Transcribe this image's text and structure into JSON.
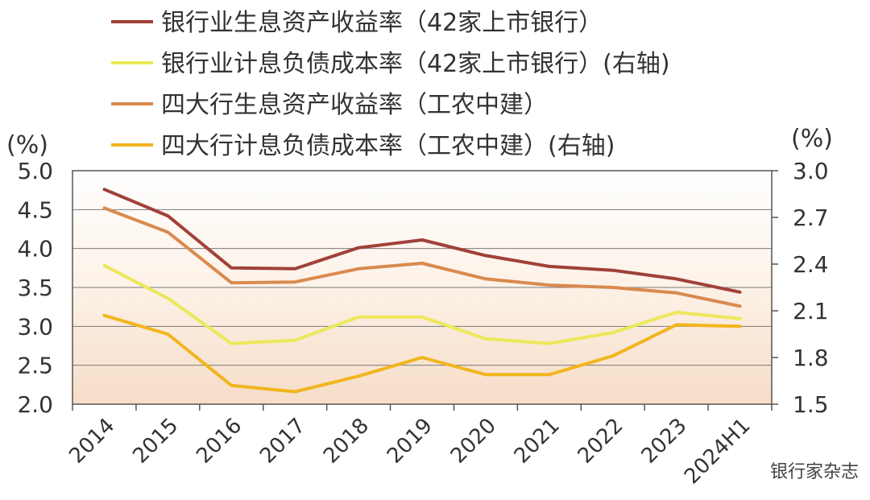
{
  "chart_data": {
    "type": "line",
    "categories": [
      "2014",
      "2015",
      "2016",
      "2017",
      "2018",
      "2019",
      "2020",
      "2021",
      "2022",
      "2023",
      "2024H1"
    ],
    "left_axis": {
      "unit": "(%)",
      "ylim": [
        2.0,
        5.0
      ],
      "ticks": [
        "5.0",
        "4.5",
        "4.0",
        "3.5",
        "3.0",
        "2.5",
        "2.0"
      ]
    },
    "right_axis": {
      "unit": "(%)",
      "ylim": [
        1.5,
        3.0
      ],
      "ticks": [
        "3.0",
        "2.7",
        "2.4",
        "2.1",
        "1.8",
        "1.5"
      ]
    },
    "grid": true,
    "legend_position": "top",
    "series": [
      {
        "name": "银行业生息资产收益率（42家上市银行）",
        "axis": "left",
        "color": "#a0413a",
        "values": [
          4.76,
          4.42,
          3.75,
          3.74,
          4.01,
          4.11,
          3.91,
          3.77,
          3.72,
          3.61,
          3.44
        ]
      },
      {
        "name": "银行业计息负债成本率（42家上市银行）(右轴)",
        "axis": "right",
        "color": "#ece85a",
        "values": [
          2.39,
          2.18,
          1.89,
          1.91,
          2.06,
          2.06,
          1.92,
          1.89,
          1.96,
          2.09,
          2.05
        ]
      },
      {
        "name": "四大行生息资产收益率（工农中建）",
        "axis": "left",
        "color": "#d98a4e",
        "values": [
          4.52,
          4.21,
          3.56,
          3.57,
          3.74,
          3.81,
          3.61,
          3.53,
          3.5,
          3.43,
          3.26
        ]
      },
      {
        "name": "四大行计息负债成本率（工农中建）(右轴)",
        "axis": "right",
        "color": "#f2b51e",
        "values": [
          2.07,
          1.95,
          1.62,
          1.58,
          1.68,
          1.8,
          1.69,
          1.69,
          1.81,
          2.01,
          2.0
        ]
      }
    ]
  },
  "watermark": "银行家杂志"
}
